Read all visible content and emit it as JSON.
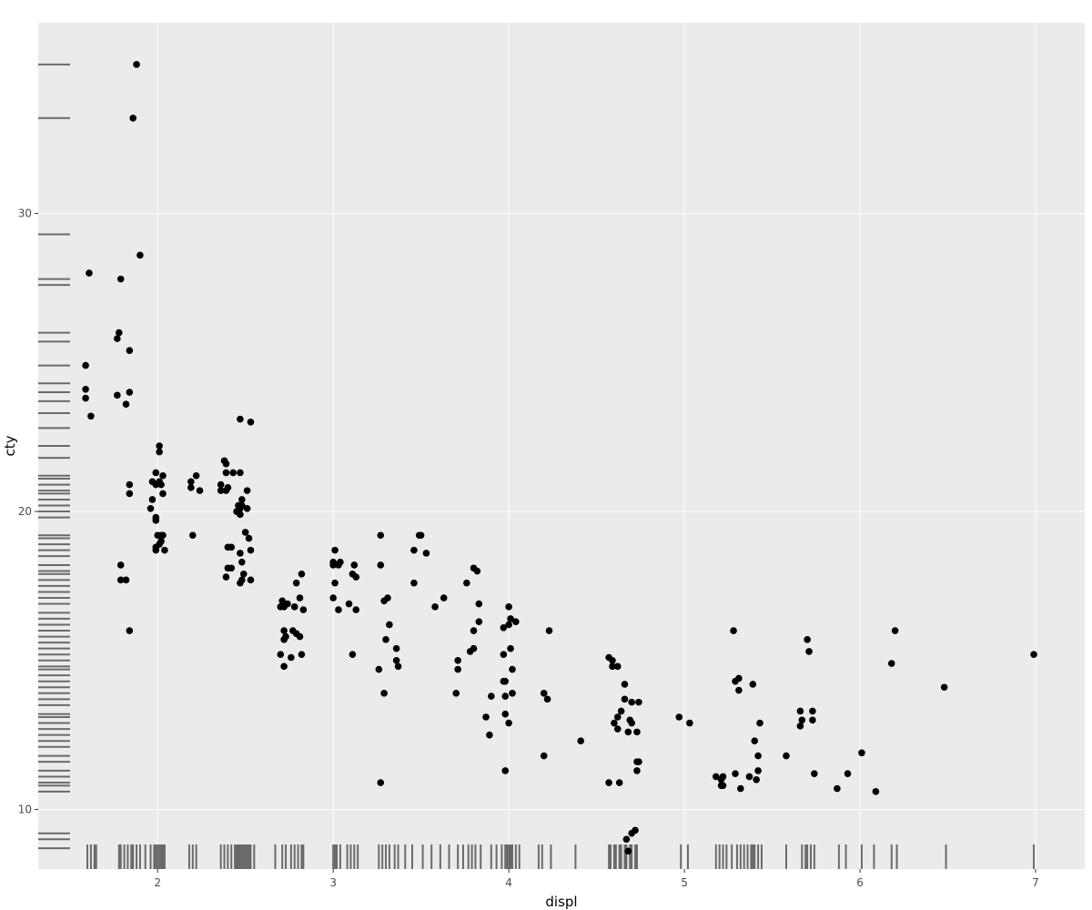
{
  "chart_data": {
    "type": "scatter",
    "title": "",
    "xlabel": "displ",
    "ylabel": "cty",
    "xlim": [
      1.32,
      7.28
    ],
    "ylim": [
      8.0,
      36.4
    ],
    "x_ticks": [
      2,
      3,
      4,
      5,
      6,
      7
    ],
    "x_tick_labels": [
      "2",
      "3",
      "4",
      "5",
      "6",
      "7"
    ],
    "y_ticks": [
      10,
      20,
      30
    ],
    "y_tick_labels": [
      "10",
      "20",
      "30"
    ],
    "grid": true,
    "legend": "none",
    "rug": "x-bottom, y-left",
    "colors": {
      "panel": "#ebebeb",
      "grid": "#ffffff",
      "point": "#000000",
      "rug": "#000000"
    },
    "points": [
      [
        1.88,
        35.0
      ],
      [
        1.86,
        33.2
      ],
      [
        1.9,
        28.6
      ],
      [
        1.61,
        28.0
      ],
      [
        1.79,
        27.8
      ],
      [
        1.78,
        26.0
      ],
      [
        1.77,
        25.8
      ],
      [
        1.84,
        25.4
      ],
      [
        1.59,
        24.9
      ],
      [
        1.59,
        24.1
      ],
      [
        1.77,
        23.9
      ],
      [
        1.84,
        24.0
      ],
      [
        1.59,
        23.8
      ],
      [
        1.82,
        23.6
      ],
      [
        1.62,
        23.2
      ],
      [
        1.84,
        20.9
      ],
      [
        1.84,
        20.6
      ],
      [
        1.79,
        18.2
      ],
      [
        1.79,
        17.7
      ],
      [
        1.82,
        17.7
      ],
      [
        1.84,
        16.0
      ],
      [
        2.01,
        22.2
      ],
      [
        2.01,
        22.0
      ],
      [
        1.99,
        21.3
      ],
      [
        1.97,
        21.0
      ],
      [
        2.03,
        21.2
      ],
      [
        2.01,
        21.0
      ],
      [
        1.99,
        20.9
      ],
      [
        2.02,
        20.9
      ],
      [
        2.03,
        20.6
      ],
      [
        1.97,
        20.4
      ],
      [
        1.96,
        20.1
      ],
      [
        1.99,
        19.8
      ],
      [
        1.99,
        19.7
      ],
      [
        2.02,
        19.2
      ],
      [
        2.0,
        19.2
      ],
      [
        2.03,
        19.2
      ],
      [
        2.02,
        19.0
      ],
      [
        1.99,
        18.8
      ],
      [
        2.01,
        18.9
      ],
      [
        1.99,
        18.7
      ],
      [
        2.04,
        18.7
      ],
      [
        2.19,
        21.0
      ],
      [
        2.22,
        21.2
      ],
      [
        2.19,
        20.8
      ],
      [
        2.24,
        20.7
      ],
      [
        2.2,
        19.2
      ],
      [
        2.38,
        21.7
      ],
      [
        2.39,
        21.6
      ],
      [
        2.43,
        21.3
      ],
      [
        2.47,
        21.3
      ],
      [
        2.39,
        21.3
      ],
      [
        2.36,
        20.9
      ],
      [
        2.4,
        20.8
      ],
      [
        2.51,
        20.7
      ],
      [
        2.36,
        20.7
      ],
      [
        2.39,
        20.7
      ],
      [
        2.48,
        20.4
      ],
      [
        2.46,
        20.2
      ],
      [
        2.47,
        20.1
      ],
      [
        2.51,
        20.1
      ],
      [
        2.45,
        20.0
      ],
      [
        2.47,
        19.9
      ],
      [
        2.48,
        20.2
      ],
      [
        2.5,
        19.3
      ],
      [
        2.52,
        19.1
      ],
      [
        2.42,
        18.8
      ],
      [
        2.4,
        18.8
      ],
      [
        2.53,
        18.7
      ],
      [
        2.47,
        18.6
      ],
      [
        2.48,
        18.3
      ],
      [
        2.42,
        18.1
      ],
      [
        2.4,
        18.1
      ],
      [
        2.39,
        17.8
      ],
      [
        2.49,
        17.9
      ],
      [
        2.48,
        17.7
      ],
      [
        2.47,
        17.6
      ],
      [
        2.53,
        17.7
      ],
      [
        2.47,
        23.1
      ],
      [
        2.53,
        23.0
      ],
      [
        2.71,
        17.0
      ],
      [
        2.72,
        16.8
      ],
      [
        2.74,
        16.9
      ],
      [
        2.7,
        16.8
      ],
      [
        2.78,
        16.8
      ],
      [
        2.81,
        17.1
      ],
      [
        2.83,
        16.7
      ],
      [
        2.79,
        17.6
      ],
      [
        2.82,
        17.9
      ],
      [
        2.72,
        16.0
      ],
      [
        2.77,
        16.0
      ],
      [
        2.79,
        15.9
      ],
      [
        2.73,
        15.8
      ],
      [
        2.72,
        15.7
      ],
      [
        2.81,
        15.8
      ],
      [
        2.7,
        15.2
      ],
      [
        2.76,
        15.1
      ],
      [
        2.82,
        15.2
      ],
      [
        2.72,
        14.8
      ],
      [
        3.0,
        18.3
      ],
      [
        3.01,
        18.7
      ],
      [
        3.04,
        18.3
      ],
      [
        3.0,
        18.2
      ],
      [
        3.03,
        18.2
      ],
      [
        3.12,
        18.2
      ],
      [
        3.01,
        17.6
      ],
      [
        3.11,
        17.9
      ],
      [
        3.13,
        17.8
      ],
      [
        3.0,
        17.1
      ],
      [
        3.09,
        16.9
      ],
      [
        3.03,
        16.7
      ],
      [
        3.13,
        16.7
      ],
      [
        3.11,
        15.2
      ],
      [
        3.27,
        19.2
      ],
      [
        3.27,
        18.2
      ],
      [
        3.29,
        17.0
      ],
      [
        3.31,
        17.1
      ],
      [
        3.32,
        16.2
      ],
      [
        3.3,
        15.7
      ],
      [
        3.36,
        15.4
      ],
      [
        3.36,
        15.0
      ],
      [
        3.37,
        14.8
      ],
      [
        3.26,
        14.7
      ],
      [
        3.29,
        13.9
      ],
      [
        3.27,
        10.9
      ],
      [
        3.49,
        19.2
      ],
      [
        3.5,
        19.2
      ],
      [
        3.46,
        18.7
      ],
      [
        3.53,
        18.6
      ],
      [
        3.46,
        17.6
      ],
      [
        3.63,
        17.1
      ],
      [
        3.58,
        16.8
      ],
      [
        3.76,
        17.6
      ],
      [
        3.8,
        18.1
      ],
      [
        3.82,
        18.0
      ],
      [
        3.83,
        16.9
      ],
      [
        3.83,
        16.3
      ],
      [
        3.8,
        16.0
      ],
      [
        3.8,
        15.4
      ],
      [
        3.78,
        15.3
      ],
      [
        3.71,
        15.0
      ],
      [
        3.71,
        14.7
      ],
      [
        3.7,
        13.9
      ],
      [
        4.0,
        16.8
      ],
      [
        4.01,
        16.4
      ],
      [
        4.04,
        16.3
      ],
      [
        4.0,
        16.2
      ],
      [
        3.97,
        16.1
      ],
      [
        4.01,
        15.4
      ],
      [
        3.97,
        15.2
      ],
      [
        4.02,
        14.7
      ],
      [
        3.97,
        14.3
      ],
      [
        3.98,
        14.3
      ],
      [
        4.02,
        13.9
      ],
      [
        3.98,
        13.8
      ],
      [
        3.9,
        13.8
      ],
      [
        3.98,
        13.2
      ],
      [
        3.87,
        13.1
      ],
      [
        4.0,
        12.9
      ],
      [
        3.89,
        12.5
      ],
      [
        3.98,
        11.3
      ],
      [
        4.2,
        13.9
      ],
      [
        4.22,
        13.7
      ],
      [
        4.23,
        16.0
      ],
      [
        4.2,
        11.8
      ],
      [
        4.41,
        12.3
      ],
      [
        4.57,
        15.1
      ],
      [
        4.59,
        15.0
      ],
      [
        4.59,
        14.8
      ],
      [
        4.62,
        14.8
      ],
      [
        4.66,
        14.2
      ],
      [
        4.66,
        13.7
      ],
      [
        4.7,
        13.6
      ],
      [
        4.74,
        13.6
      ],
      [
        4.64,
        13.3
      ],
      [
        4.69,
        13.0
      ],
      [
        4.62,
        13.1
      ],
      [
        4.6,
        12.9
      ],
      [
        4.7,
        12.9
      ],
      [
        4.62,
        12.7
      ],
      [
        4.68,
        12.6
      ],
      [
        4.73,
        12.6
      ],
      [
        4.74,
        11.6
      ],
      [
        4.73,
        11.6
      ],
      [
        4.73,
        11.3
      ],
      [
        4.63,
        10.9
      ],
      [
        4.57,
        10.9
      ],
      [
        4.72,
        9.3
      ],
      [
        4.7,
        9.2
      ],
      [
        4.67,
        9.0
      ],
      [
        4.68,
        8.6
      ],
      [
        4.97,
        13.1
      ],
      [
        5.03,
        12.9
      ],
      [
        5.28,
        16.0
      ],
      [
        5.29,
        14.3
      ],
      [
        5.31,
        14.4
      ],
      [
        5.31,
        14.0
      ],
      [
        5.39,
        14.2
      ],
      [
        5.43,
        12.9
      ],
      [
        5.4,
        12.3
      ],
      [
        5.42,
        11.8
      ],
      [
        5.42,
        11.3
      ],
      [
        5.37,
        11.1
      ],
      [
        5.29,
        11.2
      ],
      [
        5.22,
        11.1
      ],
      [
        5.18,
        11.1
      ],
      [
        5.21,
        11.0
      ],
      [
        5.22,
        10.8
      ],
      [
        5.21,
        10.8
      ],
      [
        5.41,
        11.0
      ],
      [
        5.32,
        10.7
      ],
      [
        5.58,
        11.8
      ],
      [
        5.7,
        15.7
      ],
      [
        5.71,
        15.3
      ],
      [
        5.66,
        13.3
      ],
      [
        5.73,
        13.3
      ],
      [
        5.67,
        13.0
      ],
      [
        5.66,
        12.8
      ],
      [
        5.73,
        13.0
      ],
      [
        5.74,
        11.2
      ],
      [
        5.93,
        11.2
      ],
      [
        5.87,
        10.7
      ],
      [
        6.01,
        11.9
      ],
      [
        6.09,
        10.6
      ],
      [
        6.18,
        14.9
      ],
      [
        6.2,
        16.0
      ],
      [
        6.48,
        14.1
      ],
      [
        6.99,
        15.2
      ]
    ],
    "rug_x": [
      1.6,
      1.62,
      1.64,
      1.65,
      1.78,
      1.79,
      1.81,
      1.83,
      1.85,
      1.86,
      1.88,
      1.9,
      1.93,
      1.96,
      1.98,
      1.99,
      2.0,
      2.01,
      2.02,
      2.03,
      2.04,
      2.18,
      2.2,
      2.22,
      2.36,
      2.38,
      2.4,
      2.42,
      2.44,
      2.45,
      2.46,
      2.47,
      2.48,
      2.49,
      2.5,
      2.51,
      2.52,
      2.53,
      2.55,
      2.67,
      2.71,
      2.73,
      2.76,
      2.78,
      2.8,
      2.82,
      2.83,
      3.0,
      3.01,
      3.02,
      3.04,
      3.08,
      3.1,
      3.12,
      3.14,
      3.26,
      3.28,
      3.3,
      3.32,
      3.35,
      3.37,
      3.41,
      3.45,
      3.51,
      3.56,
      3.61,
      3.66,
      3.71,
      3.74,
      3.77,
      3.79,
      3.81,
      3.84,
      3.9,
      3.93,
      3.96,
      3.98,
      3.99,
      4.0,
      4.01,
      4.02,
      4.04,
      4.06,
      4.17,
      4.19,
      4.24,
      4.38,
      4.57,
      4.58,
      4.6,
      4.61,
      4.63,
      4.64,
      4.66,
      4.67,
      4.69,
      4.7,
      4.72,
      4.73,
      4.98,
      5.02,
      5.18,
      5.2,
      5.22,
      5.24,
      5.27,
      5.3,
      5.32,
      5.34,
      5.36,
      5.38,
      5.39,
      5.4,
      5.42,
      5.44,
      5.58,
      5.67,
      5.69,
      5.7,
      5.72,
      5.74,
      5.88,
      5.92,
      6.01,
      6.08,
      6.18,
      6.21,
      6.49,
      6.99
    ],
    "rug_y": [
      35.0,
      33.2,
      29.3,
      27.8,
      27.6,
      26.0,
      25.7,
      24.9,
      24.3,
      24.0,
      23.7,
      23.3,
      22.8,
      22.2,
      21.8,
      21.2,
      21.1,
      20.9,
      20.7,
      20.6,
      20.4,
      20.2,
      20.0,
      19.8,
      19.2,
      19.1,
      18.9,
      18.7,
      18.5,
      18.2,
      18.0,
      17.9,
      17.7,
      17.5,
      17.3,
      17.1,
      16.9,
      16.6,
      16.4,
      16.2,
      16.0,
      15.8,
      15.6,
      15.4,
      15.2,
      15.0,
      14.8,
      14.7,
      14.5,
      14.3,
      14.1,
      13.9,
      13.7,
      13.5,
      13.2,
      13.1,
      12.9,
      12.7,
      12.5,
      12.3,
      12.1,
      11.8,
      11.6,
      11.3,
      11.1,
      10.9,
      10.8,
      10.6,
      9.2,
      9.0,
      8.7
    ]
  }
}
